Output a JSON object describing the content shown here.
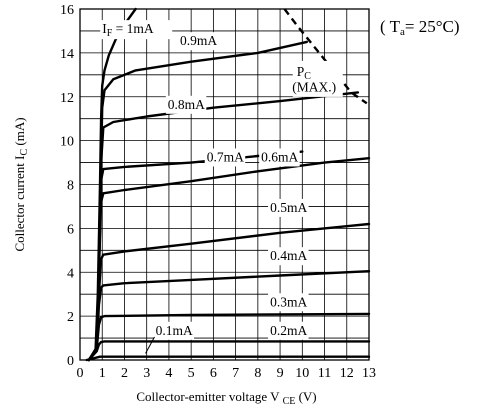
{
  "chart_data": {
    "type": "line",
    "title": "",
    "condition": {
      "prefix": "( T",
      "sub": "a",
      "suffix": "=  25°C)"
    },
    "xlabel": {
      "main": "Collector-emitter voltage V",
      "sub": "CE",
      "unit": " (V)"
    },
    "ylabel": {
      "main": "Collector current I",
      "sub": "C",
      "unit": " (mA)"
    },
    "xlim": [
      0,
      13
    ],
    "ylim": [
      0,
      16
    ],
    "xticks": [
      "0",
      "1",
      "2",
      "3",
      "4",
      "5",
      "6",
      "7",
      "8",
      "9",
      "10",
      "11",
      "12",
      "13"
    ],
    "yticks": [
      "0",
      "2",
      "4",
      "6",
      "8",
      "10",
      "12",
      "14",
      "16"
    ],
    "grid": true,
    "series": [
      {
        "name": "I_F = 1mA",
        "label": {
          "main": "I",
          "sub": "F",
          "rest": " = 1mA"
        },
        "points": [
          [
            0.4,
            0
          ],
          [
            0.7,
            0.5
          ],
          [
            0.8,
            3
          ],
          [
            0.9,
            8
          ],
          [
            0.95,
            11
          ],
          [
            1.0,
            12.5
          ],
          [
            1.1,
            13.2
          ],
          [
            1.3,
            13.9
          ],
          [
            1.6,
            14.6
          ],
          [
            2.0,
            15.3
          ],
          [
            2.5,
            16.0
          ]
        ]
      },
      {
        "name": "0.9mA",
        "points": [
          [
            0.4,
            0
          ],
          [
            0.75,
            0.5
          ],
          [
            0.85,
            4
          ],
          [
            0.95,
            9
          ],
          [
            1.0,
            11.5
          ],
          [
            1.1,
            12.3
          ],
          [
            1.5,
            12.8
          ],
          [
            2.5,
            13.2
          ],
          [
            5,
            13.6
          ],
          [
            8,
            14.0
          ],
          [
            10.2,
            14.5
          ]
        ]
      },
      {
        "name": "0.8mA",
        "points": [
          [
            0.4,
            0
          ],
          [
            0.75,
            0.5
          ],
          [
            0.85,
            4
          ],
          [
            0.95,
            9
          ],
          [
            1.05,
            10.6
          ],
          [
            1.5,
            10.85
          ],
          [
            3,
            11.1
          ],
          [
            6,
            11.5
          ],
          [
            9,
            11.8
          ],
          [
            12.5,
            12.2
          ]
        ]
      },
      {
        "name": "0.7mA",
        "points": [
          [
            0.4,
            0
          ],
          [
            0.75,
            0.5
          ],
          [
            0.85,
            4
          ],
          [
            0.95,
            8.2
          ],
          [
            1.05,
            8.7
          ],
          [
            2,
            8.8
          ],
          [
            5,
            9.0
          ],
          [
            8,
            9.3
          ],
          [
            10,
            9.5
          ]
        ]
      },
      {
        "name": "0.6mA",
        "points": [
          [
            0.4,
            0
          ],
          [
            0.75,
            0.5
          ],
          [
            0.85,
            4
          ],
          [
            0.95,
            7.2
          ],
          [
            1.05,
            7.6
          ],
          [
            2,
            7.75
          ],
          [
            5,
            8.15
          ],
          [
            8,
            8.6
          ],
          [
            11,
            9.0
          ],
          [
            13,
            9.2
          ]
        ]
      },
      {
        "name": "0.5mA",
        "points": [
          [
            0.4,
            0
          ],
          [
            0.75,
            0.5
          ],
          [
            0.85,
            3
          ],
          [
            0.95,
            4.6
          ],
          [
            1.05,
            4.8
          ],
          [
            2,
            4.95
          ],
          [
            5,
            5.3
          ],
          [
            9,
            5.8
          ],
          [
            12,
            6.1
          ],
          [
            13,
            6.2
          ]
        ]
      },
      {
        "name": "0.4mA",
        "points": [
          [
            0.4,
            0
          ],
          [
            0.75,
            0.5
          ],
          [
            0.85,
            2.5
          ],
          [
            0.95,
            3.3
          ],
          [
            1.05,
            3.4
          ],
          [
            2,
            3.5
          ],
          [
            5,
            3.65
          ],
          [
            9,
            3.85
          ],
          [
            13,
            4.05
          ]
        ]
      },
      {
        "name": "0.3mA",
        "points": [
          [
            0.4,
            0
          ],
          [
            0.75,
            0.5
          ],
          [
            0.85,
            1.6
          ],
          [
            0.95,
            1.95
          ],
          [
            1.1,
            2.0
          ],
          [
            5,
            2.05
          ],
          [
            13,
            2.1
          ]
        ]
      },
      {
        "name": "0.2mA",
        "points": [
          [
            0.4,
            0
          ],
          [
            0.75,
            0.4
          ],
          [
            0.85,
            0.7
          ],
          [
            0.95,
            0.82
          ],
          [
            1.1,
            0.85
          ],
          [
            5,
            0.85
          ],
          [
            13,
            0.85
          ]
        ]
      },
      {
        "name": "0.1mA",
        "points": [
          [
            0.3,
            0
          ],
          [
            0.7,
            0.1
          ],
          [
            0.9,
            0.15
          ],
          [
            1.1,
            0.15
          ],
          [
            5,
            0.15
          ],
          [
            13,
            0.15
          ]
        ]
      }
    ],
    "pc_max": {
      "label": "P",
      "sub": "C",
      "note": "(MAX.)",
      "points": [
        [
          9.2,
          16
        ],
        [
          9.8,
          15.2
        ],
        [
          10.4,
          14.45
        ],
        [
          11.0,
          13.7
        ],
        [
          11.6,
          12.95
        ],
        [
          12.2,
          12.2
        ],
        [
          12.9,
          11.7
        ]
      ]
    },
    "labels": [
      {
        "series": "I_F = 1mA",
        "at": [
          1.0,
          14.9
        ]
      },
      {
        "series": "0.9mA",
        "at": [
          4.5,
          14.35
        ]
      },
      {
        "series": "0.8mA",
        "at": [
          3.95,
          11.45
        ]
      },
      {
        "series": "0.7mA",
        "at": [
          5.7,
          9.05
        ]
      },
      {
        "series": "0.6mA",
        "at": [
          8.15,
          9.05
        ]
      },
      {
        "series": "0.5mA",
        "at": [
          8.55,
          6.75
        ]
      },
      {
        "series": "0.4mA",
        "at": [
          8.55,
          4.55
        ]
      },
      {
        "series": "0.3mA",
        "at": [
          8.55,
          2.45
        ]
      },
      {
        "series": "0.2mA",
        "at": [
          8.55,
          1.15
        ]
      },
      {
        "series": "0.1mA",
        "at": [
          3.4,
          1.15
        ]
      },
      {
        "series": "PC",
        "at": [
          9.75,
          12.95
        ]
      },
      {
        "series": "PCnote",
        "at": [
          9.55,
          12.25
        ]
      }
    ]
  }
}
